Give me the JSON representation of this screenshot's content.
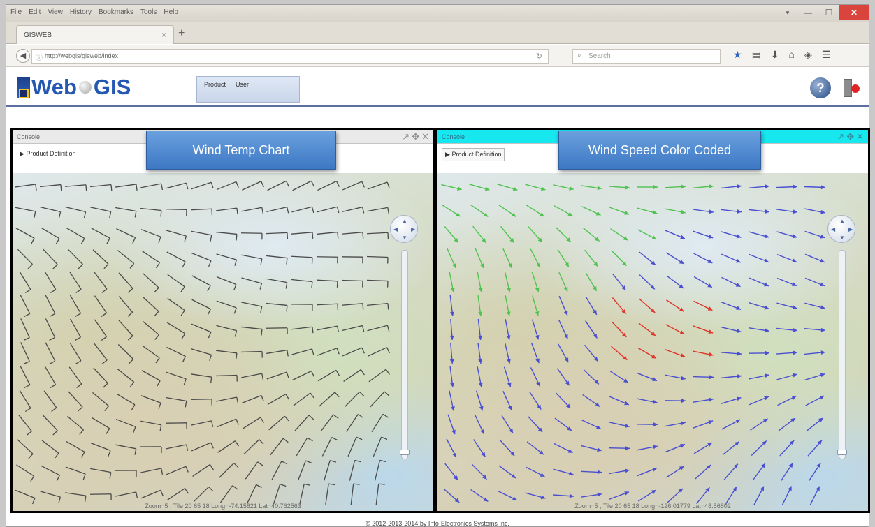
{
  "browser": {
    "menu": [
      "File",
      "Edit",
      "View",
      "History",
      "Bookmarks",
      "Tools",
      "Help"
    ],
    "tab_title": "GISWEB",
    "url": "http://webgis/gisweb/index",
    "search_placeholder": "Search",
    "window_controls": {
      "minimize": "—",
      "maximize": "☐",
      "close": "✕"
    }
  },
  "site": {
    "logo_web": "Web",
    "logo_gis": "GIS",
    "menu": [
      "Product",
      "User"
    ],
    "help_label": "?"
  },
  "panels": {
    "left": {
      "title": "Console",
      "product_def_label": "Product Definition",
      "callout": "Wind Temp Chart",
      "coords": "Zoom=5 ; Tile 20 65 18 Long=-74.15821 Lat=40.762563"
    },
    "right": {
      "title": "Console",
      "product_def_label": "Product Definition",
      "callout": "Wind Speed Color Coded",
      "coords": "Zoom=5 ; Tile 20 65 18 Long=-126.01779 Lat=48.56802"
    }
  },
  "footer": "© 2012-2013-2014 by Info-Electronics Systems Inc.",
  "colors": {
    "barb": "#4a4a4a",
    "arrow_slow": "#4a4fd1",
    "arrow_medium": "#4fc24f",
    "arrow_fast": "#e0352a",
    "callout": "#4a86cf"
  }
}
